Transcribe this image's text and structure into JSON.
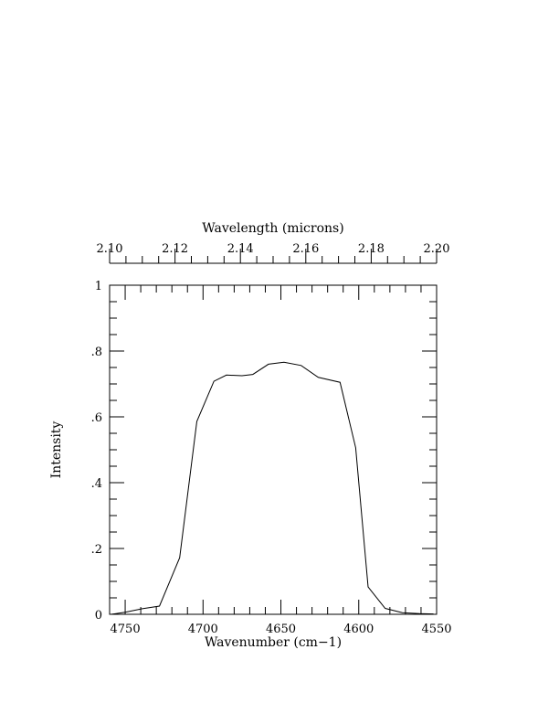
{
  "chart_data": {
    "type": "line",
    "xlabel": "Wavenumber (cm−1)",
    "x2label": "Wavelength (microns)",
    "ylabel": "Intensity",
    "xlim": [
      4760,
      4550
    ],
    "ylim": [
      0,
      1
    ],
    "x2lim": [
      2.1,
      2.2
    ],
    "xticks": [
      4750,
      4700,
      4650,
      4600,
      4550
    ],
    "xtick_labels": [
      "4750",
      "4700",
      "4650",
      "4600",
      "4550"
    ],
    "yticks": [
      0,
      0.2,
      0.4,
      0.6,
      0.8,
      1
    ],
    "ytick_labels": [
      "0",
      ".2",
      ".4",
      ".6",
      ".8",
      "1"
    ],
    "x2ticks": [
      2.1,
      2.12,
      2.14,
      2.16,
      2.18,
      2.2
    ],
    "x2tick_labels": [
      "2.10",
      "2.12",
      "2.14",
      "2.16",
      "2.18",
      "2.20"
    ],
    "grid": false,
    "series": [
      {
        "x": [
          4759,
          4750,
          4739,
          4728,
          4715,
          4704,
          4693,
          4685,
          4675,
          4668,
          4658,
          4648,
          4637,
          4626,
          4612,
          4602,
          4594,
          4583,
          4572,
          4561,
          4552
        ],
        "values": [
          0.0,
          0.006,
          0.017,
          0.025,
          0.172,
          0.586,
          0.708,
          0.727,
          0.725,
          0.729,
          0.76,
          0.766,
          0.756,
          0.72,
          0.705,
          0.506,
          0.083,
          0.018,
          0.005,
          0.002,
          0.001
        ]
      }
    ]
  }
}
